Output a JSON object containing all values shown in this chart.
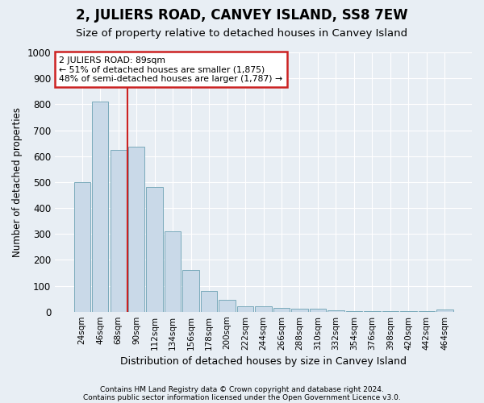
{
  "title": "2, JULIERS ROAD, CANVEY ISLAND, SS8 7EW",
  "subtitle": "Size of property relative to detached houses in Canvey Island",
  "xlabel": "Distribution of detached houses by size in Canvey Island",
  "ylabel": "Number of detached properties",
  "categories": [
    "24sqm",
    "46sqm",
    "68sqm",
    "90sqm",
    "112sqm",
    "134sqm",
    "156sqm",
    "178sqm",
    "200sqm",
    "222sqm",
    "244sqm",
    "266sqm",
    "288sqm",
    "310sqm",
    "332sqm",
    "354sqm",
    "376sqm",
    "398sqm",
    "420sqm",
    "442sqm",
    "464sqm"
  ],
  "values": [
    500,
    810,
    625,
    635,
    480,
    310,
    160,
    80,
    45,
    22,
    22,
    15,
    10,
    10,
    5,
    3,
    3,
    2,
    1,
    1,
    8
  ],
  "bar_color": "#c9d9e8",
  "bar_edge_color": "#7aaabb",
  "annotation_line1": "2 JULIERS ROAD: 89sqm",
  "annotation_line2": "← 51% of detached houses are smaller (1,875)",
  "annotation_line3": "48% of semi-detached houses are larger (1,787) →",
  "annotation_box_color": "#ffffff",
  "annotation_box_edge": "#cc2222",
  "property_line_color": "#cc2222",
  "property_line_x": 2.5,
  "ylim": [
    0,
    1000
  ],
  "yticks": [
    0,
    100,
    200,
    300,
    400,
    500,
    600,
    700,
    800,
    900,
    1000
  ],
  "footer1": "Contains HM Land Registry data © Crown copyright and database right 2024.",
  "footer2": "Contains public sector information licensed under the Open Government Licence v3.0.",
  "background_color": "#e8eef4",
  "plot_background": "#e8eef4",
  "grid_color": "#ffffff"
}
